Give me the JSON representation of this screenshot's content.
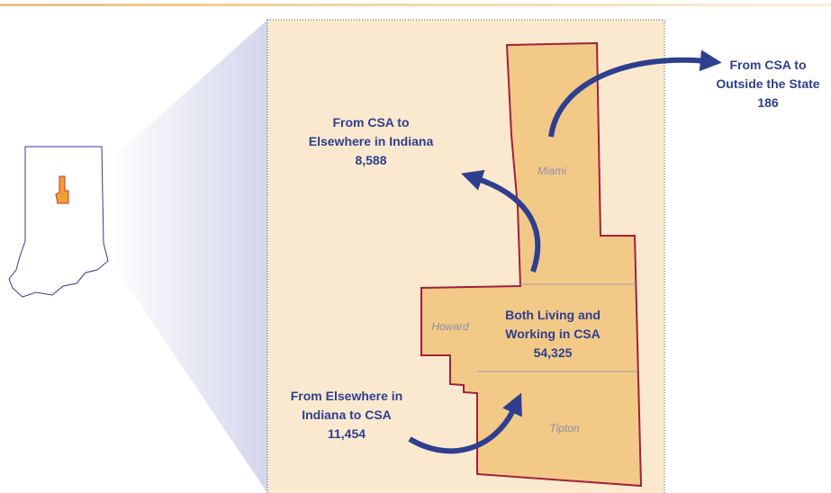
{
  "flows": [
    {
      "lines": [
        "From CSA to",
        "Outside the State"
      ],
      "value": "186"
    },
    {
      "lines": [
        "From CSA to",
        "Elsewhere in Indiana"
      ],
      "value": "8,588"
    },
    {
      "lines": [
        "Both Living and",
        "Working in CSA"
      ],
      "value": "54,325"
    },
    {
      "lines": [
        "From Elsewhere in",
        "Indiana to CSA"
      ],
      "value": "11,454"
    }
  ],
  "counties": [
    "Miami",
    "Howard",
    "Tipton"
  ]
}
